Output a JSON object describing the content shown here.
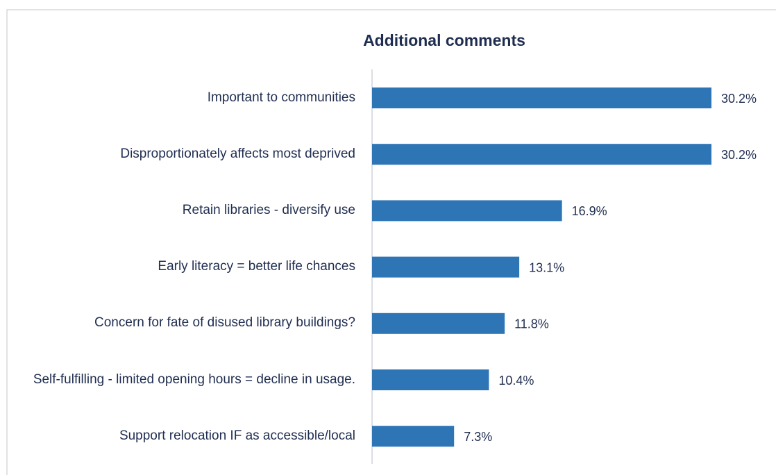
{
  "chart_data": {
    "type": "bar",
    "orientation": "horizontal",
    "title": "Additional comments",
    "categories": [
      "Important to communities",
      "Disproportionately affects most deprived",
      "Retain libraries - diversify use",
      "Early literacy = better life chances",
      "Concern for fate of disused library buildings?",
      "Self-fulfilling - limited opening hours = decline in usage.",
      "Support relocation IF as accessible/local"
    ],
    "values": [
      30.2,
      30.2,
      16.9,
      13.1,
      11.8,
      10.4,
      7.3
    ],
    "value_labels": [
      "30.2%",
      "30.2%",
      "16.9%",
      "13.1%",
      "11.8%",
      "10.4%",
      "7.3%"
    ],
    "color": "#2e75b6"
  }
}
